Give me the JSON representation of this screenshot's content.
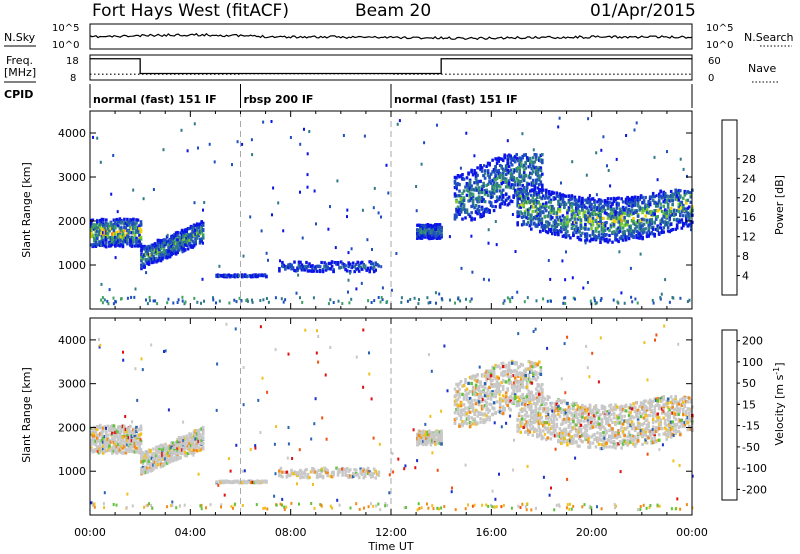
{
  "header": {
    "title": "Fort Hays West (fitACF)",
    "beam": "Beam 20",
    "date": "01/Apr/2015"
  },
  "noise_panel": {
    "left_label": "N.Sky",
    "left_ticks": [
      "10^5",
      "10^0"
    ],
    "right_label": "N.Search",
    "right_ticks": [
      "10^5",
      "10^0"
    ]
  },
  "freq_panel": {
    "left_label": "Freq.",
    "left_unit": "[MHz]",
    "left_ticks": [
      "18",
      "8"
    ],
    "right_label": "Nave",
    "right_ticks": [
      "60",
      "0"
    ]
  },
  "cpid": {
    "label": "CPID",
    "segments": [
      {
        "name": "normal (fast) 151 IF",
        "start_hour": 0,
        "end_hour": 6
      },
      {
        "name": "rbsp 200 IF",
        "start_hour": 6,
        "end_hour": 12
      },
      {
        "name": "normal (fast) 151 IF",
        "start_hour": 12,
        "end_hour": 24
      }
    ]
  },
  "chart_data": [
    {
      "type": "heatmap",
      "title": "",
      "xlabel": "",
      "ylabel": "Slant Range [km]",
      "xlim": [
        0,
        24
      ],
      "ylim": [
        0,
        4500
      ],
      "yticks": [
        1000,
        2000,
        3000,
        4000
      ],
      "colorbar": {
        "label": "Power [dB]",
        "ticks": [
          "4",
          "8",
          "12",
          "16",
          "20",
          "24",
          "28"
        ],
        "colors": [
          "#0a14e6",
          "#1f4fbf",
          "#2f7a8a",
          "#3aa160",
          "#7ccc2a",
          "#f0d40a",
          "#f7a010",
          "#f06a0a",
          "#e01a0a"
        ]
      },
      "echo_regions": [
        {
          "t0": 0.0,
          "t1": 2.0,
          "r0": 1450,
          "r1": 2150,
          "core": 1720,
          "level": 0.45
        },
        {
          "t0": 2.0,
          "t1": 4.5,
          "r0": 1000,
          "r1": 1900,
          "core": 1300,
          "level": 0.25
        },
        {
          "t0": 5.0,
          "t1": 7.0,
          "r0": 720,
          "r1": 770,
          "core": 745,
          "level": 0.05
        },
        {
          "t0": 7.5,
          "t1": 11.5,
          "r0": 850,
          "r1": 1100,
          "core": 950,
          "level": 0.05
        },
        {
          "t0": 13.0,
          "t1": 14.0,
          "r0": 1600,
          "r1": 1950,
          "core": 1750,
          "level": 0.15
        },
        {
          "t0": 14.5,
          "t1": 18.0,
          "r0": 2100,
          "r1": 3400,
          "core": 2700,
          "level": 0.2
        },
        {
          "t0": 17.0,
          "t1": 24.0,
          "r0": 1500,
          "r1": 2600,
          "core": 2000,
          "level": 0.35
        }
      ]
    },
    {
      "type": "heatmap",
      "title": "",
      "xlabel": "Time UT",
      "ylabel": "Slant Range [km]",
      "xlim": [
        0,
        24
      ],
      "ylim": [
        0,
        4500
      ],
      "yticks": [
        1000,
        2000,
        3000,
        4000
      ],
      "xticks": [
        "00:00",
        "04:00",
        "08:00",
        "12:00",
        "16:00",
        "20:00",
        "00:00"
      ],
      "colorbar": {
        "label": "Velocity [m s^-1]",
        "ticks": [
          "200",
          "100",
          "50",
          "15",
          "-15",
          "-50",
          "-100",
          "-200"
        ],
        "colors": [
          "#1a2ecc",
          "#2a64b0",
          "#2e8a6a",
          "#5fc23a",
          "#c8c8c8",
          "#f0c020",
          "#f08a18",
          "#f05010",
          "#e01010"
        ]
      },
      "echo_regions": [
        {
          "t0": 0.0,
          "t1": 2.0,
          "r0": 1450,
          "r1": 2150,
          "core": 1720,
          "level": 0.5
        },
        {
          "t0": 2.0,
          "t1": 4.5,
          "r0": 1000,
          "r1": 1900,
          "core": 1300,
          "level": 0.55
        },
        {
          "t0": 5.0,
          "t1": 7.0,
          "r0": 720,
          "r1": 770,
          "core": 745,
          "level": 0.5
        },
        {
          "t0": 7.5,
          "t1": 11.5,
          "r0": 850,
          "r1": 1100,
          "core": 950,
          "level": 0.6
        },
        {
          "t0": 13.0,
          "t1": 14.0,
          "r0": 1600,
          "r1": 1950,
          "core": 1750,
          "level": 0.35
        },
        {
          "t0": 14.5,
          "t1": 18.0,
          "r0": 2100,
          "r1": 3400,
          "core": 2700,
          "level": 0.5
        },
        {
          "t0": 17.0,
          "t1": 24.0,
          "r0": 1500,
          "r1": 2600,
          "core": 2000,
          "level": 0.5
        }
      ]
    }
  ]
}
